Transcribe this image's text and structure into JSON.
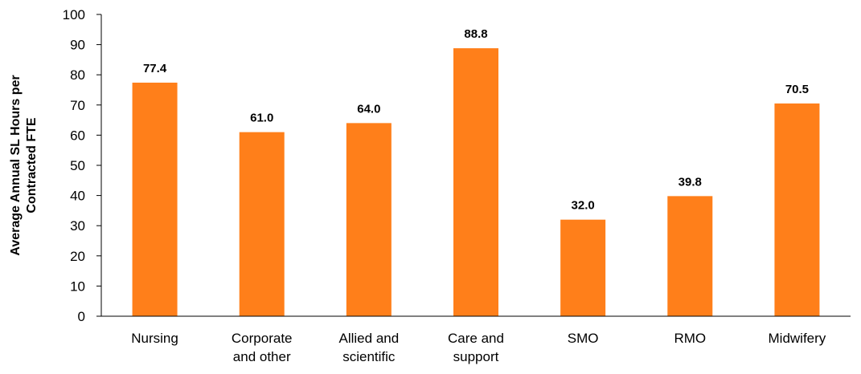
{
  "chart_data": {
    "type": "bar",
    "categories": [
      [
        "Nursing"
      ],
      [
        "Corporate",
        "and other"
      ],
      [
        "Allied and",
        "scientific"
      ],
      [
        "Care and",
        "support"
      ],
      [
        "SMO"
      ],
      [
        "RMO"
      ],
      [
        "Midwifery"
      ]
    ],
    "values": [
      77.4,
      61.0,
      64.0,
      88.8,
      32.0,
      39.8,
      70.5
    ],
    "value_labels": [
      "77.4",
      "61.0",
      "64.0",
      "88.8",
      "32.0",
      "39.8",
      "70.5"
    ],
    "title": "",
    "xlabel": "",
    "ylabel_lines": [
      "Average Annual SL Hours per",
      "Contracted FTE"
    ],
    "ylim": [
      0,
      100
    ],
    "yticks": [
      0,
      10,
      20,
      30,
      40,
      50,
      60,
      70,
      80,
      90,
      100
    ],
    "grid": false,
    "legend": "none",
    "bar_color": "#FF7F1A",
    "axis_color": "#000000"
  }
}
